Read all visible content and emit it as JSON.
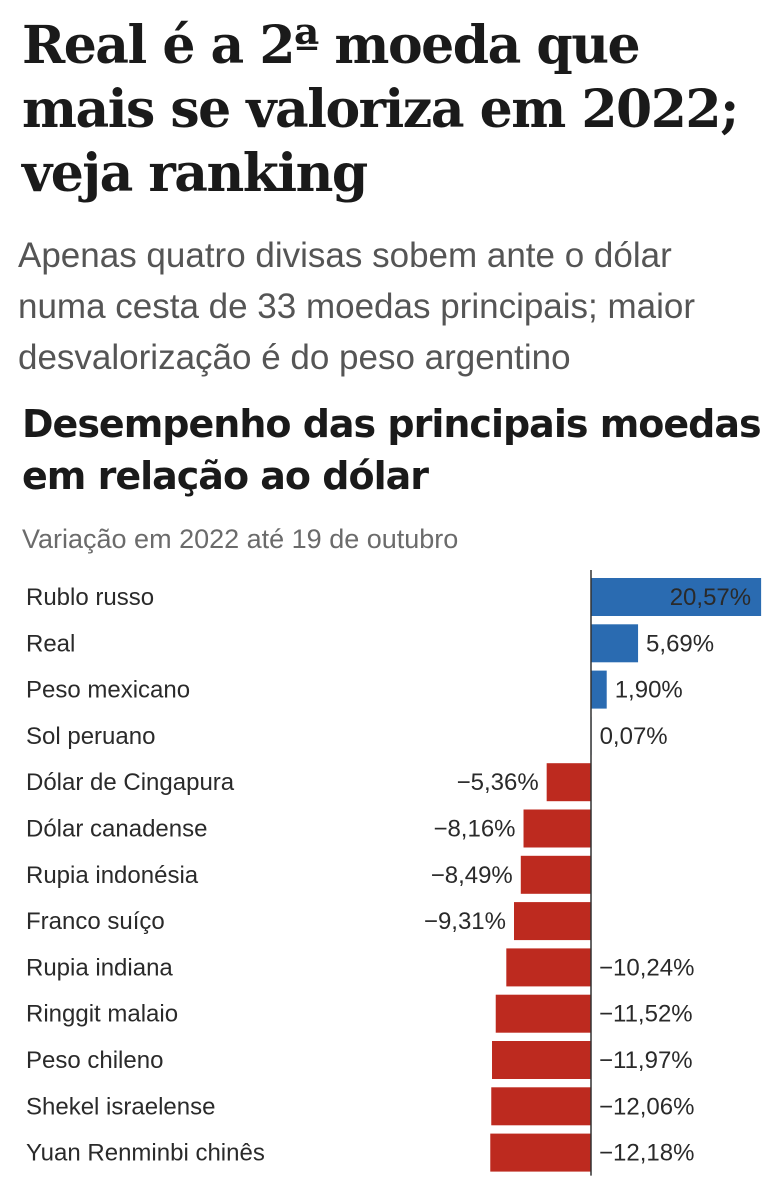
{
  "article": {
    "headline": "Real é a 2ª moeda que mais se valoriza em 2022; veja ranking",
    "deck": "Apenas quatro divisas sobem ante o dólar numa cesta de 33 moedas principais; maior desvalorização é do peso argentino"
  },
  "chart_data": {
    "type": "bar",
    "orientation": "horizontal",
    "title": "Desempenho das principais moedas em relação ao dólar",
    "subtitle": "Variação em 2022 até 19 de outubro",
    "categories": [
      "Rublo russo",
      "Real",
      "Peso mexicano",
      "Sol peruano",
      "Dólar de Cingapura",
      "Dólar canadense",
      "Rupia indonésia",
      "Franco suíço",
      "Rupia indiana",
      "Ringgit malaio",
      "Peso chileno",
      "Shekel israelense",
      "Yuan Renminbi chinês"
    ],
    "values": [
      20.57,
      5.69,
      1.9,
      0.07,
      -5.36,
      -8.16,
      -8.49,
      -9.31,
      -10.24,
      -11.52,
      -11.97,
      -12.06,
      -12.18
    ],
    "labels": [
      "20,57%",
      "5,69%",
      "1,90%",
      "0,07%",
      "−5,36%",
      "−8,16%",
      "−8,49%",
      "−9,31%",
      "−10,24%",
      "−11,52%",
      "−11,97%",
      "−12,06%",
      "−12,18%"
    ],
    "colors": {
      "positive": "#2a6bb1",
      "negative": "#bd2a1f",
      "axis": "#333333"
    },
    "xlabel": "",
    "ylabel": ""
  }
}
